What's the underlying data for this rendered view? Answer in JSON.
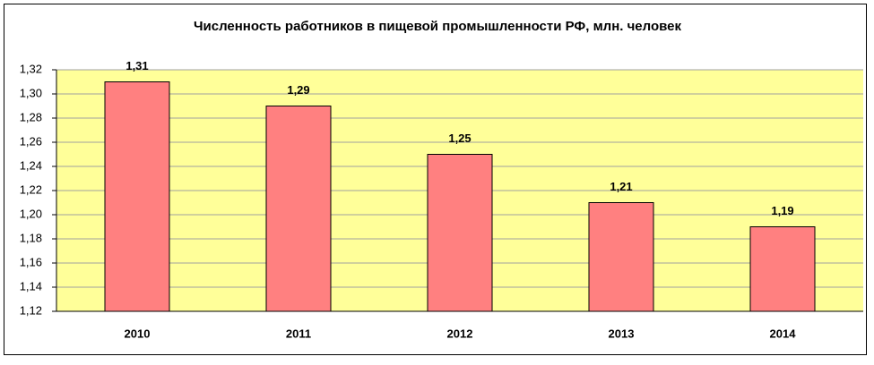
{
  "chart_data": {
    "type": "bar",
    "title": "Численность работников в пищевой промышленности РФ, млн. человек",
    "categories": [
      "2010",
      "2011",
      "2012",
      "2013",
      "2014"
    ],
    "values": [
      1.31,
      1.29,
      1.25,
      1.21,
      1.19
    ],
    "value_labels": [
      "1,31",
      "1,29",
      "1,25",
      "1,21",
      "1,19"
    ],
    "color": "#ff8080",
    "plot_background": "#ffff99",
    "ylim": [
      1.12,
      1.32
    ],
    "yticks": [
      {
        "value": 1.12,
        "label": "1,12"
      },
      {
        "value": 1.14,
        "label": "1,14"
      },
      {
        "value": 1.16,
        "label": "1,16"
      },
      {
        "value": 1.18,
        "label": "1,18"
      },
      {
        "value": 1.2,
        "label": "1,20"
      },
      {
        "value": 1.22,
        "label": "1,22"
      },
      {
        "value": 1.24,
        "label": "1,24"
      },
      {
        "value": 1.26,
        "label": "1,26"
      },
      {
        "value": 1.28,
        "label": "1,28"
      },
      {
        "value": 1.3,
        "label": "1,30"
      },
      {
        "value": 1.32,
        "label": "1,32"
      }
    ],
    "grid": true
  }
}
